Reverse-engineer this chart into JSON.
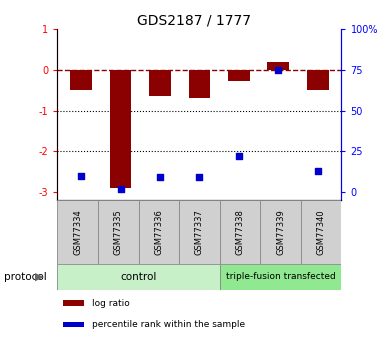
{
  "title": "GDS2187 / 1777",
  "samples": [
    "GSM77334",
    "GSM77335",
    "GSM77336",
    "GSM77337",
    "GSM77338",
    "GSM77339",
    "GSM77340"
  ],
  "log_ratio": [
    -0.5,
    -2.9,
    -0.65,
    -0.7,
    -0.28,
    0.2,
    -0.5
  ],
  "percentile_rank": [
    10,
    2,
    9,
    9,
    22,
    75,
    13
  ],
  "n_control": 4,
  "n_triple": 3,
  "bar_color": "#8B0000",
  "dot_color": "#0000CC",
  "ylim": [
    -3.2,
    1.0
  ],
  "yticks_left": [
    -3,
    -2,
    -1,
    0,
    1
  ],
  "yticks_right_vals": [
    0,
    25,
    50,
    75,
    100
  ],
  "yticks_right_labels": [
    "0",
    "25",
    "50",
    "75",
    "100%"
  ],
  "dotted_lines": [
    -1,
    -2
  ],
  "control_color": "#c8f0c8",
  "triple_color": "#90e890",
  "sample_box_color": "#d0d0d0",
  "legend_items": [
    {
      "label": "log ratio",
      "color": "#8B0000"
    },
    {
      "label": "percentile rank within the sample",
      "color": "#0000CC"
    }
  ],
  "protocol_label": "protocol"
}
